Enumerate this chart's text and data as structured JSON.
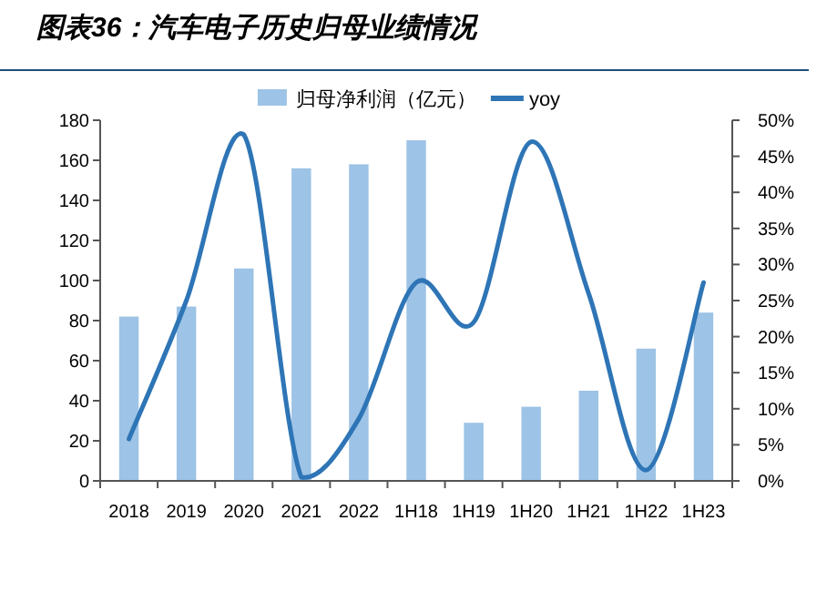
{
  "chart_data": {
    "type": "bar",
    "title": "图表36：汽车电子历史归母业绩情况",
    "categories": [
      "2018",
      "2019",
      "2020",
      "2021",
      "2022",
      "1H18",
      "1H19",
      "1H20",
      "1H21",
      "1H22",
      "1H23"
    ],
    "series": [
      {
        "name": "归母净利润（亿元）",
        "color": "#9dc3e6",
        "values": [
          82,
          87,
          106,
          156,
          158,
          170,
          29,
          37,
          45,
          66,
          84
        ]
      },
      {
        "name": "yoy",
        "type": "line",
        "axis": "y2",
        "color": "#2e75b6",
        "values": [
          5.8,
          25,
          48,
          0.5,
          8.6,
          27.5,
          22,
          47,
          26,
          1.5,
          27.5
        ]
      }
    ],
    "ylim": [
      0,
      180
    ],
    "yticks": [
      0,
      20,
      40,
      60,
      80,
      100,
      120,
      140,
      160,
      180
    ],
    "y2lim": [
      0,
      50
    ],
    "y2ticks": [
      {
        "value": 0,
        "label": "0%"
      },
      {
        "value": 5,
        "label": "5%"
      },
      {
        "value": 10,
        "label": "10%"
      },
      {
        "value": 15,
        "label": "15%"
      },
      {
        "value": 20,
        "label": "20%"
      },
      {
        "value": 25,
        "label": "25%"
      },
      {
        "value": 30,
        "label": "30%"
      },
      {
        "value": 35,
        "label": "35%"
      },
      {
        "value": 40,
        "label": "40%"
      },
      {
        "value": 45,
        "label": "45%"
      },
      {
        "value": 50,
        "label": "50%"
      }
    ],
    "legend": "top",
    "grid": false
  }
}
